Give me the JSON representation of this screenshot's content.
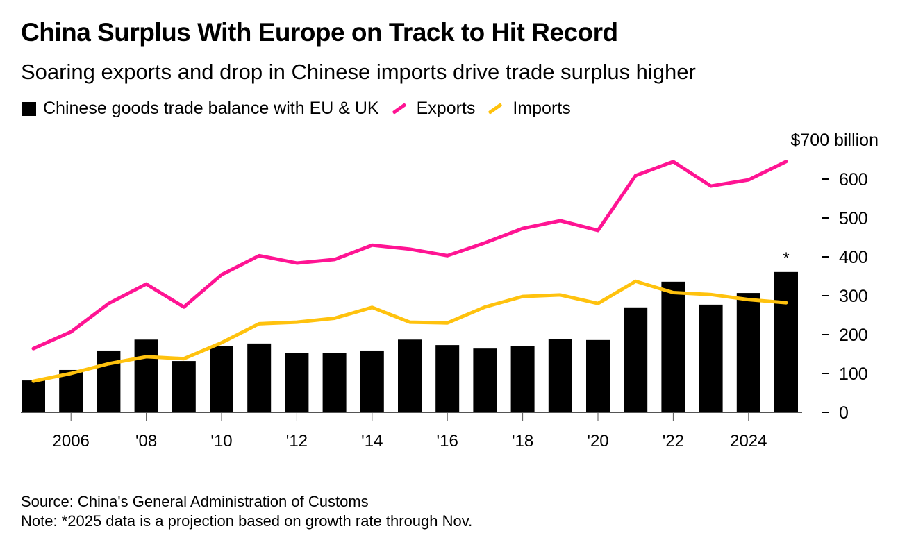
{
  "title": "China Surplus With Europe on Track to Hit Record",
  "subtitle": "Soaring exports and drop in Chinese imports drive trade surplus higher",
  "source": "Source: China's General Administration of Customs",
  "note": "Note: *2025 data is a projection based on growth rate through Nov.",
  "chart_data": {
    "type": "bar",
    "title": "China Surplus With Europe on Track to Hit Record",
    "ylabel": "$ billion",
    "y_unit_label": "$700 billion",
    "ylim": [
      0,
      700
    ],
    "yticks": [
      0,
      100,
      200,
      300,
      400,
      500,
      600
    ],
    "x": [
      2005,
      2006,
      2007,
      2008,
      2009,
      2010,
      2011,
      2012,
      2013,
      2014,
      2015,
      2016,
      2017,
      2018,
      2019,
      2020,
      2021,
      2022,
      2023,
      2024,
      2025
    ],
    "xtick_labels": [
      {
        "year": 2006,
        "label": "2006"
      },
      {
        "year": 2008,
        "label": "'08"
      },
      {
        "year": 2010,
        "label": "'10"
      },
      {
        "year": 2012,
        "label": "'12"
      },
      {
        "year": 2014,
        "label": "'14"
      },
      {
        "year": 2016,
        "label": "'16"
      },
      {
        "year": 2018,
        "label": "'18"
      },
      {
        "year": 2020,
        "label": "'20"
      },
      {
        "year": 2022,
        "label": "'22"
      },
      {
        "year": 2024,
        "label": "2024"
      }
    ],
    "annotation": {
      "year": 2025,
      "text": "*"
    },
    "legend_position": "top-left",
    "series": [
      {
        "name": "Chinese goods trade balance with EU & UK",
        "type": "bar",
        "color": "#000000",
        "values": [
          82,
          109,
          159,
          187,
          132,
          171,
          177,
          152,
          152,
          159,
          187,
          173,
          164,
          171,
          189,
          186,
          270,
          336,
          277,
          307,
          361
        ]
      },
      {
        "name": "Exports",
        "type": "line",
        "color": "#ff1493",
        "values": [
          164,
          207,
          280,
          330,
          271,
          354,
          403,
          384,
          393,
          430,
          420,
          403,
          436,
          473,
          493,
          468,
          609,
          645,
          582,
          598,
          645
        ]
      },
      {
        "name": "Imports",
        "type": "line",
        "color": "#ffc20e",
        "values": [
          80,
          100,
          125,
          143,
          138,
          179,
          228,
          232,
          242,
          270,
          232,
          230,
          271,
          298,
          302,
          280,
          337,
          308,
          303,
          290,
          282
        ]
      }
    ]
  }
}
